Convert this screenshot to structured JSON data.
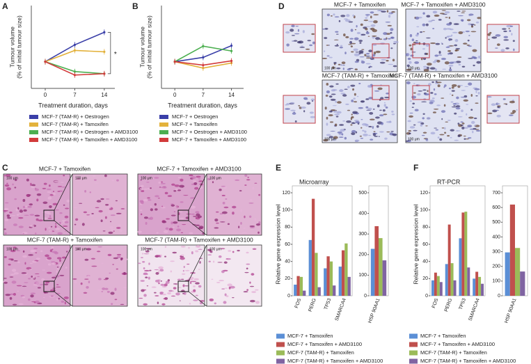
{
  "chart_data": [
    {
      "type": "line",
      "panel": "A",
      "xlabel": "Treatment duration, days",
      "ylabel": [
        "Tumour volume",
        "(% of initial tumour size)"
      ],
      "x": [
        0,
        7,
        14
      ],
      "xlim": [
        -3.3,
        16.5
      ],
      "xticks": [
        0,
        7,
        14
      ],
      "ylim": [
        0,
        310
      ],
      "annotation": "*",
      "series": [
        {
          "name": "MCF-7 (TAM-R) + Oestrogen",
          "color": "#3a3fa8",
          "values": [
            100,
            163,
            210
          ]
        },
        {
          "name": "MCF-7 (TAM-R) + Tamoxifen",
          "color": "#e3b23c",
          "values": [
            100,
            142,
            137
          ]
        },
        {
          "name": "MCF-7 (TAM-R) + Oestrogen + AMD3100",
          "color": "#4caf50",
          "values": [
            100,
            63,
            55
          ]
        },
        {
          "name": "MCF-7 (TAM-R) + Tamoxifen + AMD3100",
          "color": "#d23b3b",
          "values": [
            100,
            50,
            55
          ]
        }
      ]
    },
    {
      "type": "line",
      "panel": "B",
      "xlabel": "Treatment duration, days",
      "ylabel": [
        "Tumour volume",
        "(% of initial tumour size)"
      ],
      "x": [
        0,
        7,
        14
      ],
      "xlim": [
        -3.3,
        17
      ],
      "xticks": [
        0,
        7,
        14
      ],
      "ylim": [
        0,
        310
      ],
      "series": [
        {
          "name": "MCF-7 + Oestrogen",
          "color": "#3a3fa8",
          "values": [
            100,
            116,
            160
          ]
        },
        {
          "name": "MCF-7 + Tamoxifen",
          "color": "#e3b23c",
          "values": [
            100,
            76,
            95
          ]
        },
        {
          "name": "MCF-7 + Oestrogen + AMD3100",
          "color": "#4caf50",
          "values": [
            100,
            158,
            140
          ]
        },
        {
          "name": "MCF-7 + Tamoxifen + AMD3100",
          "color": "#d23b3b",
          "values": [
            100,
            87,
            103
          ]
        }
      ]
    },
    {
      "type": "bar",
      "panel": "E",
      "title": "Microarray",
      "ylabel": "Relative gene expression level",
      "categories": [
        "FOS",
        "PERG",
        "TP53",
        "SMARCA4"
      ],
      "ylim": [
        0,
        120
      ],
      "yticks": [
        0,
        20,
        40,
        60,
        80,
        100,
        120
      ],
      "y2_categories": [
        "HSP 90AA1"
      ],
      "y2lim": [
        0,
        500
      ],
      "y2ticks": [
        0,
        100,
        200,
        300,
        400,
        500
      ],
      "series": [
        {
          "name": "MCF-7 + Tamoxifen",
          "color": "#5b8fd6",
          "values": [
            13,
            65,
            32,
            34
          ],
          "y2_values": [
            228
          ]
        },
        {
          "name": "MCF-7 + Tamoxifen + AMD3100",
          "color": "#c0504d",
          "values": [
            23,
            113,
            46,
            53
          ],
          "y2_values": [
            338
          ]
        },
        {
          "name": "MCF-7 (TAM-R) + Tamoxifen",
          "color": "#9bbb59",
          "values": [
            22,
            50,
            40,
            61
          ],
          "y2_values": [
            280
          ]
        },
        {
          "name": "MCF-7 (TAM-R) + Tamoxifen + AMD3100",
          "color": "#8064a2",
          "values": [
            6,
            10,
            12,
            22
          ],
          "y2_values": [
            172
          ]
        }
      ]
    },
    {
      "type": "bar",
      "panel": "F",
      "title": "RT-PCR",
      "ylabel": "Relative gene expression level",
      "categories": [
        "FOS",
        "PERG",
        "TP53",
        "SMARCA4"
      ],
      "ylim": [
        0,
        120
      ],
      "yticks": [
        0,
        20,
        40,
        60,
        80,
        100,
        120
      ],
      "y2_categories": [
        "HSP 90AA1"
      ],
      "y2lim": [
        0,
        700
      ],
      "y2ticks": [
        0,
        100,
        200,
        300,
        400,
        500,
        600,
        700
      ],
      "series": [
        {
          "name": "MCF-7 + Tamoxifen",
          "color": "#5b8fd6",
          "values": [
            18,
            37,
            67,
            20
          ],
          "y2_values": [
            295
          ]
        },
        {
          "name": "MCF-7 + Tamoxifen + AMD3100",
          "color": "#c0504d",
          "values": [
            27,
            83,
            97,
            28
          ],
          "y2_values": [
            620
          ]
        },
        {
          "name": "MCF-7 (TAM-R) + Tamoxifen",
          "color": "#9bbb59",
          "values": [
            23,
            38,
            98,
            22
          ],
          "y2_values": [
            325
          ]
        },
        {
          "name": "MCF-7 (TAM-R) + Tamoxifen + AMD3100",
          "color": "#8064a2",
          "values": [
            16,
            18,
            33,
            14
          ],
          "y2_values": [
            165
          ]
        }
      ]
    }
  ],
  "micrographs": [
    {
      "panel": "C",
      "scale_bar": "100 μm",
      "captions": [
        "MCF-7 + Tamoxifen",
        "MCF-7 + Tamoxifen + AMD3100",
        "MCF-7 (TAM-R) + Tamoxifen",
        "MCF-7 (TAM-R) + Tamoxifen + AMD3100"
      ]
    },
    {
      "panel": "D",
      "scale_bar": "100 μm",
      "captions": [
        "MCF-7 + Tamoxifen",
        "MCF-7 + Tamoxifen + AMD3100",
        "MCF-7 (TAM-R) + Tamoxifen",
        "MCF-7 (TAM-R) + Tamoxifen + AMD3100"
      ]
    }
  ]
}
